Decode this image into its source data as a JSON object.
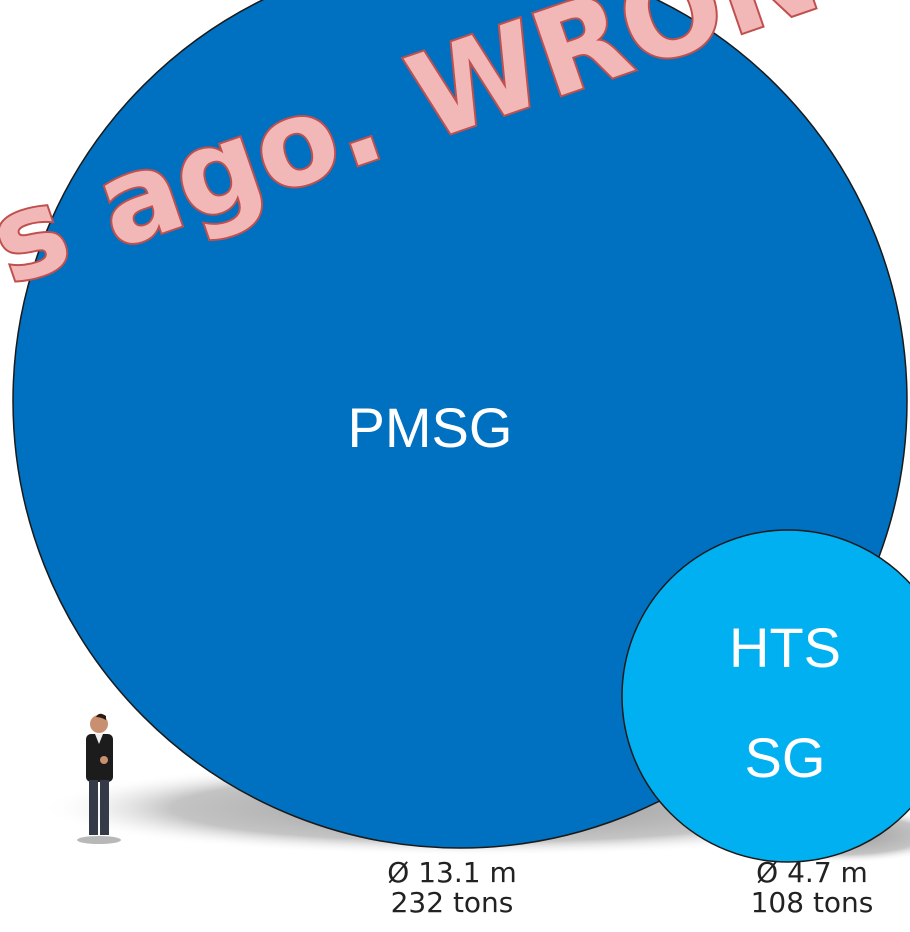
{
  "overlay_text": "s ago. WRONG !",
  "pmsg": {
    "label": "PMSG",
    "diameter": "Ø 13.1 m",
    "mass": "232 tons"
  },
  "hts": {
    "label_lines": [
      "HTS",
      "SG"
    ],
    "diameter": "Ø 4.7 m",
    "mass": "108 tons"
  }
}
